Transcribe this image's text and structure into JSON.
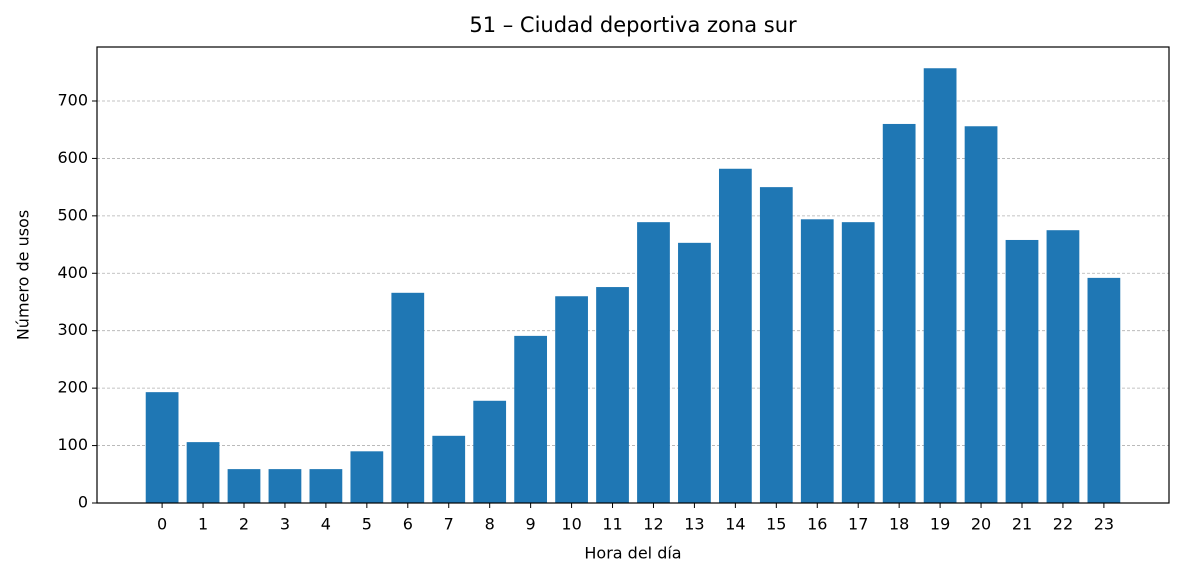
{
  "chart_data": {
    "type": "bar",
    "title": "51 – Ciudad deportiva zona sur",
    "x_label": "Hora del día",
    "y_label": "Número de usos",
    "x": [
      0,
      1,
      2,
      3,
      4,
      5,
      6,
      7,
      8,
      9,
      10,
      11,
      12,
      13,
      14,
      15,
      16,
      17,
      18,
      19,
      20,
      21,
      22,
      23
    ],
    "values": [
      193,
      106,
      59,
      59,
      59,
      90,
      366,
      117,
      178,
      291,
      360,
      376,
      489,
      453,
      582,
      550,
      494,
      489,
      660,
      757,
      656,
      458,
      475,
      392
    ],
    "color": "#1f77b4",
    "xlim": [
      -1.59,
      24.59
    ],
    "xticks": [
      0,
      1,
      2,
      3,
      4,
      5,
      6,
      7,
      8,
      9,
      10,
      11,
      12,
      13,
      14,
      15,
      16,
      17,
      18,
      19,
      20,
      21,
      22,
      23
    ],
    "ylim": [
      0,
      794
    ],
    "yticks": [
      0,
      100,
      200,
      300,
      400,
      500,
      600,
      700
    ],
    "grid": true
  }
}
